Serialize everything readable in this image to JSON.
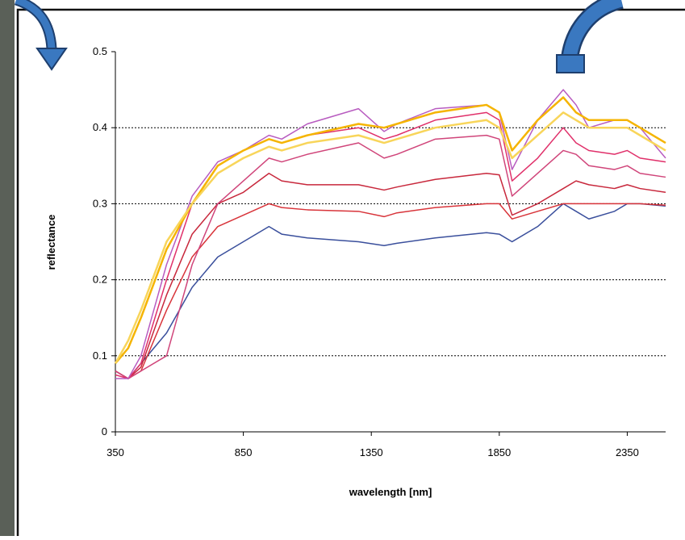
{
  "chart_data": {
    "type": "line",
    "xlabel": "wavelength [nm]",
    "ylabel": "reflectance",
    "x": [
      350,
      400,
      450,
      550,
      650,
      750,
      850,
      950,
      1000,
      1100,
      1300,
      1400,
      1450,
      1600,
      1800,
      1850,
      1900,
      2000,
      2100,
      2150,
      2200,
      2300,
      2350,
      2400,
      2500
    ],
    "series": [
      {
        "color": "#3a4f9c",
        "values": [
          0.08,
          0.07,
          0.09,
          0.13,
          0.19,
          0.23,
          0.25,
          0.27,
          0.26,
          0.255,
          0.25,
          0.245,
          0.248,
          0.255,
          0.262,
          0.26,
          0.25,
          0.27,
          0.3,
          0.29,
          0.28,
          0.29,
          0.3,
          0.3,
          0.297
        ]
      },
      {
        "color": "#d8343a",
        "values": [
          0.08,
          0.07,
          0.08,
          0.16,
          0.23,
          0.27,
          0.285,
          0.3,
          0.295,
          0.292,
          0.29,
          0.283,
          0.288,
          0.295,
          0.3,
          0.3,
          0.28,
          0.29,
          0.3,
          0.3,
          0.3,
          0.3,
          0.3,
          0.3,
          0.298
        ]
      },
      {
        "color": "#c8283c",
        "values": [
          0.08,
          0.07,
          0.085,
          0.18,
          0.26,
          0.3,
          0.315,
          0.34,
          0.33,
          0.325,
          0.325,
          0.318,
          0.322,
          0.332,
          0.34,
          0.338,
          0.285,
          0.3,
          0.32,
          0.33,
          0.325,
          0.32,
          0.325,
          0.32,
          0.315
        ]
      },
      {
        "color": "#d0457a",
        "values": [
          0.08,
          0.07,
          0.08,
          0.1,
          0.22,
          0.3,
          0.33,
          0.36,
          0.355,
          0.365,
          0.38,
          0.36,
          0.365,
          0.385,
          0.39,
          0.385,
          0.31,
          0.34,
          0.37,
          0.365,
          0.35,
          0.345,
          0.35,
          0.34,
          0.335
        ]
      },
      {
        "color": "#e0306a",
        "values": [
          0.075,
          0.07,
          0.09,
          0.2,
          0.3,
          0.35,
          0.37,
          0.385,
          0.38,
          0.39,
          0.4,
          0.385,
          0.39,
          0.41,
          0.42,
          0.41,
          0.33,
          0.36,
          0.4,
          0.38,
          0.37,
          0.365,
          0.37,
          0.36,
          0.355
        ]
      },
      {
        "color": "#b85cc0",
        "values": [
          0.07,
          0.07,
          0.1,
          0.22,
          0.31,
          0.355,
          0.37,
          0.39,
          0.385,
          0.405,
          0.425,
          0.395,
          0.405,
          0.425,
          0.43,
          0.42,
          0.345,
          0.41,
          0.45,
          0.43,
          0.4,
          0.41,
          0.41,
          0.4,
          0.36
        ]
      },
      {
        "color": "#f5b400",
        "values": [
          0.09,
          0.11,
          0.15,
          0.24,
          0.3,
          0.35,
          0.37,
          0.385,
          0.38,
          0.39,
          0.405,
          0.4,
          0.405,
          0.42,
          0.43,
          0.42,
          0.37,
          0.41,
          0.44,
          0.42,
          0.41,
          0.41,
          0.41,
          0.4,
          0.38
        ]
      },
      {
        "color": "#f8d55a",
        "values": [
          0.09,
          0.12,
          0.16,
          0.25,
          0.3,
          0.34,
          0.36,
          0.375,
          0.37,
          0.38,
          0.39,
          0.38,
          0.385,
          0.4,
          0.41,
          0.4,
          0.36,
          0.39,
          0.42,
          0.41,
          0.4,
          0.4,
          0.4,
          0.39,
          0.37
        ]
      }
    ],
    "xlim": [
      350,
      2500
    ],
    "ylim": [
      0,
      0.5
    ],
    "xticks": [
      350,
      850,
      1350,
      1850,
      2350
    ],
    "yticks": [
      0,
      0.1,
      0.2,
      0.3,
      0.4,
      0.5
    ],
    "grid": true
  }
}
